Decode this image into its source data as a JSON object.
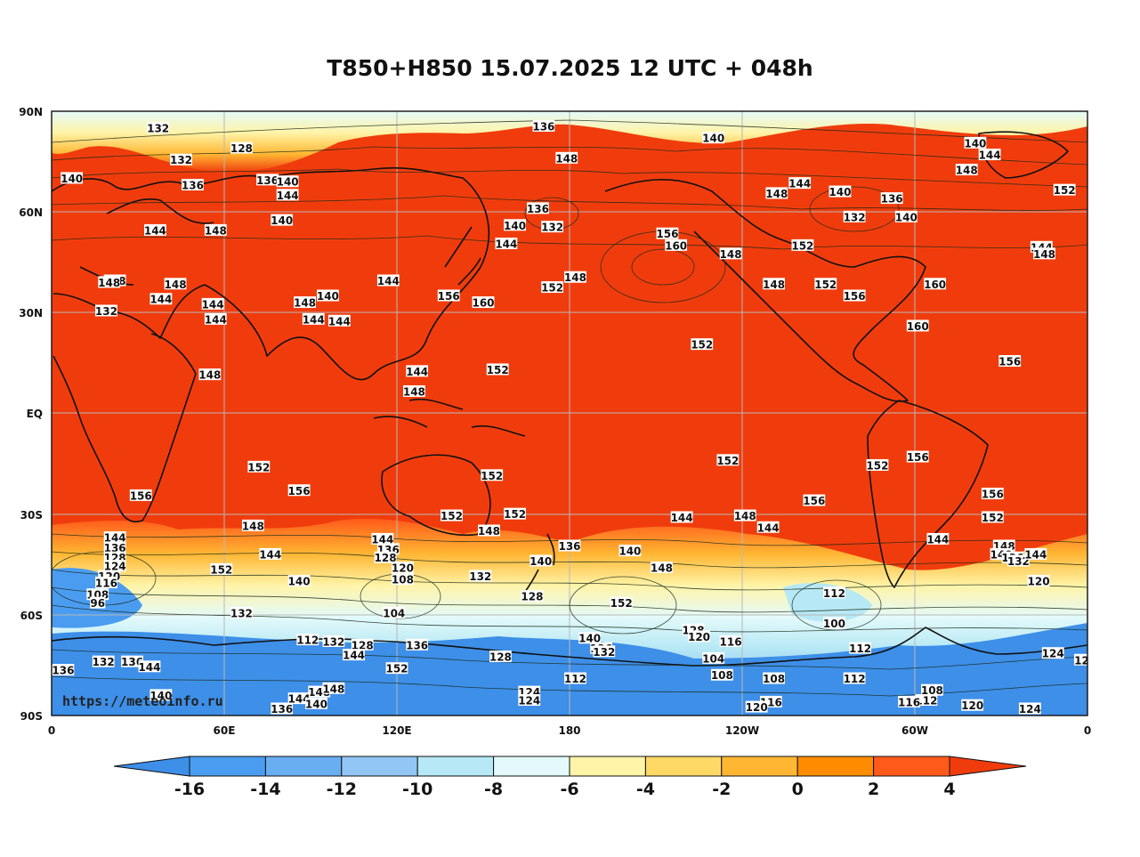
{
  "title": "T850+H850 15.07.2025 12 UTC + 048h",
  "watermark": "https://meteoinfo.ru",
  "y_axis_labels": [
    "90N",
    "60N",
    "30N",
    "EQ",
    "30S",
    "60S",
    "90S"
  ],
  "x_axis_labels": [
    "0",
    "60E",
    "120E",
    "180",
    "120W",
    "60W",
    "0"
  ],
  "colorbar": {
    "ticks": [
      "-16",
      "-14",
      "-12",
      "-10",
      "-8",
      "-6",
      "-4",
      "-2",
      "0",
      "2",
      "4"
    ],
    "colors": [
      "#3d8fe8",
      "#4a9cf0",
      "#6aaef2",
      "#92c6f5",
      "#b6e8f5",
      "#e4fafa",
      "#fff4a8",
      "#ffd966",
      "#ffb733",
      "#ff8c00",
      "#ff5a1a",
      "#f03c0c"
    ]
  },
  "colors": {
    "warm": "#f03c0c",
    "coast": "#111111",
    "grid": "#b8b8b8"
  },
  "contour_labels": [
    {
      "t": "132",
      "lon": 37,
      "lat": 85
    },
    {
      "t": "136",
      "lon": 171,
      "lat": 85.5
    },
    {
      "t": "140",
      "lon": 230,
      "lat": 82
    },
    {
      "t": "140",
      "lon": 321,
      "lat": 80.5
    },
    {
      "t": "144",
      "lon": 326,
      "lat": 77
    },
    {
      "t": "128",
      "lon": 66,
      "lat": 79
    },
    {
      "t": "132",
      "lon": 45,
      "lat": 75.5
    },
    {
      "t": "148",
      "lon": 179,
      "lat": 76
    },
    {
      "t": "148",
      "lon": 318,
      "lat": 72.5
    },
    {
      "t": "140",
      "lon": 7,
      "lat": 70
    },
    {
      "t": "136",
      "lon": 49,
      "lat": 68
    },
    {
      "t": "136",
      "lon": 75,
      "lat": 69.5
    },
    {
      "t": "140",
      "lon": 82,
      "lat": 69
    },
    {
      "t": "144",
      "lon": 82,
      "lat": 65
    },
    {
      "t": "148",
      "lon": 252,
      "lat": 65.5
    },
    {
      "t": "144",
      "lon": 260,
      "lat": 68.5
    },
    {
      "t": "140",
      "lon": 274,
      "lat": 66
    },
    {
      "t": "132",
      "lon": 279,
      "lat": 58.5
    },
    {
      "t": "140",
      "lon": 297,
      "lat": 58.5
    },
    {
      "t": "136",
      "lon": 292,
      "lat": 64
    },
    {
      "t": "152",
      "lon": 352,
      "lat": 66.5
    },
    {
      "t": "136",
      "lon": 169,
      "lat": 61
    },
    {
      "t": "132",
      "lon": 174,
      "lat": 55.5
    },
    {
      "t": "140",
      "lon": 161,
      "lat": 56
    },
    {
      "t": "144",
      "lon": 158,
      "lat": 50.5
    },
    {
      "t": "140",
      "lon": 80,
      "lat": 57.5
    },
    {
      "t": "144",
      "lon": 36,
      "lat": 54.5
    },
    {
      "t": "148",
      "lon": 57,
      "lat": 54.5
    },
    {
      "t": "156",
      "lon": 214,
      "lat": 53.5
    },
    {
      "t": "160",
      "lon": 217,
      "lat": 50
    },
    {
      "t": "148",
      "lon": 236,
      "lat": 47.5
    },
    {
      "t": "152",
      "lon": 261,
      "lat": 50
    },
    {
      "t": "144",
      "lon": 344,
      "lat": 49.5
    },
    {
      "t": "148",
      "lon": 345,
      "lat": 47.5
    },
    {
      "t": "148",
      "lon": 182,
      "lat": 40.5
    },
    {
      "t": "152",
      "lon": 174,
      "lat": 37.5
    },
    {
      "t": "148",
      "lon": 251,
      "lat": 38.5
    },
    {
      "t": "152",
      "lon": 269,
      "lat": 38.5
    },
    {
      "t": "156",
      "lon": 279,
      "lat": 35
    },
    {
      "t": "160",
      "lon": 307,
      "lat": 38.5
    },
    {
      "t": "148",
      "lon": 22,
      "lat": 39.5
    },
    {
      "t": "148",
      "lon": 43,
      "lat": 38.5
    },
    {
      "t": "144",
      "lon": 38,
      "lat": 34
    },
    {
      "t": "144",
      "lon": 117,
      "lat": 39.5
    },
    {
      "t": "156",
      "lon": 138,
      "lat": 35
    },
    {
      "t": "160",
      "lon": 150,
      "lat": 33
    },
    {
      "t": "148",
      "lon": 20,
      "lat": 39
    },
    {
      "t": "132",
      "lon": 19,
      "lat": 30.5
    },
    {
      "t": "148",
      "lon": 88,
      "lat": 33
    },
    {
      "t": "140",
      "lon": 96,
      "lat": 35
    },
    {
      "t": "144",
      "lon": 56,
      "lat": 32.5
    },
    {
      "t": "144",
      "lon": 91,
      "lat": 28
    },
    {
      "t": "144",
      "lon": 100,
      "lat": 27.5
    },
    {
      "t": "144",
      "lon": 57,
      "lat": 28
    },
    {
      "t": "152",
      "lon": 226,
      "lat": 20.5
    },
    {
      "t": "160",
      "lon": 301,
      "lat": 26
    },
    {
      "t": "156",
      "lon": 333,
      "lat": 15.5
    },
    {
      "t": "152",
      "lon": 155,
      "lat": 13
    },
    {
      "t": "144",
      "lon": 127,
      "lat": 12.5
    },
    {
      "t": "148",
      "lon": 126,
      "lat": 6.5
    },
    {
      "t": "148",
      "lon": 55,
      "lat": 11.5
    },
    {
      "t": "152",
      "lon": 72,
      "lat": -16
    },
    {
      "t": "152",
      "lon": 235,
      "lat": -14
    },
    {
      "t": "152",
      "lon": 287,
      "lat": -15.5
    },
    {
      "t": "156",
      "lon": 301,
      "lat": -13
    },
    {
      "t": "152",
      "lon": 153,
      "lat": -18.5
    },
    {
      "t": "156",
      "lon": 86,
      "lat": -23
    },
    {
      "t": "156",
      "lon": 31,
      "lat": -24.5
    },
    {
      "t": "156",
      "lon": 265,
      "lat": -26
    },
    {
      "t": "156",
      "lon": 327,
      "lat": -24
    },
    {
      "t": "152",
      "lon": 139,
      "lat": -30.5
    },
    {
      "t": "152",
      "lon": 161,
      "lat": -30
    },
    {
      "t": "152",
      "lon": 327,
      "lat": -31
    },
    {
      "t": "144",
      "lon": 219,
      "lat": -31
    },
    {
      "t": "148",
      "lon": 241,
      "lat": -30.5
    },
    {
      "t": "144",
      "lon": 249,
      "lat": -34
    },
    {
      "t": "148",
      "lon": 70,
      "lat": -33.5
    },
    {
      "t": "148",
      "lon": 152,
      "lat": -35
    },
    {
      "t": "144",
      "lon": 22,
      "lat": -37
    },
    {
      "t": "136",
      "lon": 22,
      "lat": -40
    },
    {
      "t": "128",
      "lon": 22,
      "lat": -43
    },
    {
      "t": "124",
      "lon": 22,
      "lat": -45.5
    },
    {
      "t": "120",
      "lon": 20,
      "lat": -48.5
    },
    {
      "t": "116",
      "lon": 19,
      "lat": -50.5
    },
    {
      "t": "108",
      "lon": 16,
      "lat": -54
    },
    {
      "t": "96",
      "lon": 16,
      "lat": -56.5
    },
    {
      "t": "152",
      "lon": 59,
      "lat": -46.5
    },
    {
      "t": "144",
      "lon": 76,
      "lat": -42
    },
    {
      "t": "140",
      "lon": 86,
      "lat": -50
    },
    {
      "t": "144",
      "lon": 115,
      "lat": -37.5
    },
    {
      "t": "136",
      "lon": 117,
      "lat": -40.5
    },
    {
      "t": "128",
      "lon": 116,
      "lat": -43
    },
    {
      "t": "120",
      "lon": 122,
      "lat": -46
    },
    {
      "t": "108",
      "lon": 122,
      "lat": -49.5
    },
    {
      "t": "104",
      "lon": 119,
      "lat": -59.5
    },
    {
      "t": "132",
      "lon": 149,
      "lat": -48.5
    },
    {
      "t": "128",
      "lon": 167,
      "lat": -54.5
    },
    {
      "t": "136",
      "lon": 180,
      "lat": -39.5
    },
    {
      "t": "140",
      "lon": 170,
      "lat": -44
    },
    {
      "t": "140",
      "lon": 201,
      "lat": -41
    },
    {
      "t": "148",
      "lon": 212,
      "lat": -46
    },
    {
      "t": "152",
      "lon": 198,
      "lat": -56.5
    },
    {
      "t": "132",
      "lon": 66,
      "lat": -59.5
    },
    {
      "t": "112",
      "lon": 272,
      "lat": -53.5
    },
    {
      "t": "100",
      "lon": 272,
      "lat": -62.5
    },
    {
      "t": "144",
      "lon": 308,
      "lat": -37.5
    },
    {
      "t": "148",
      "lon": 331,
      "lat": -39.5
    },
    {
      "t": "140",
      "lon": 330,
      "lat": -42
    },
    {
      "t": "136",
      "lon": 334,
      "lat": -43
    },
    {
      "t": "132",
      "lon": 336,
      "lat": -44
    },
    {
      "t": "144",
      "lon": 342,
      "lat": -42
    },
    {
      "t": "120",
      "lon": 343,
      "lat": -50
    },
    {
      "t": "112",
      "lon": 89,
      "lat": -67.5
    },
    {
      "t": "132",
      "lon": 98,
      "lat": -68
    },
    {
      "t": "128",
      "lon": 108,
      "lat": -69
    },
    {
      "t": "144",
      "lon": 105,
      "lat": -72
    },
    {
      "t": "136",
      "lon": 127,
      "lat": -69
    },
    {
      "t": "152",
      "lon": 120,
      "lat": -76
    },
    {
      "t": "136",
      "lon": 4,
      "lat": -76.5
    },
    {
      "t": "132",
      "lon": 18,
      "lat": -74
    },
    {
      "t": "136",
      "lon": 28,
      "lat": -74
    },
    {
      "t": "144",
      "lon": 34,
      "lat": -75.5
    },
    {
      "t": "128",
      "lon": 156,
      "lat": -72.5
    },
    {
      "t": "140",
      "lon": 187,
      "lat": -67
    },
    {
      "t": "136",
      "lon": 191,
      "lat": -70
    },
    {
      "t": "132",
      "lon": 192,
      "lat": -71
    },
    {
      "t": "128",
      "lon": 223,
      "lat": -64.5
    },
    {
      "t": "120",
      "lon": 225,
      "lat": -66.5
    },
    {
      "t": "116",
      "lon": 236,
      "lat": -68
    },
    {
      "t": "104",
      "lon": 230,
      "lat": -73
    },
    {
      "t": "108",
      "lon": 233,
      "lat": -78
    },
    {
      "t": "112",
      "lon": 281,
      "lat": -70
    },
    {
      "t": "112",
      "lon": 279,
      "lat": -79
    },
    {
      "t": "108",
      "lon": 251,
      "lat": -79
    },
    {
      "t": "124",
      "lon": 348,
      "lat": -71.5
    },
    {
      "t": "12",
      "lon": 358,
      "lat": -73.5
    },
    {
      "t": "112",
      "lon": 182,
      "lat": -79
    },
    {
      "t": "108",
      "lon": 306,
      "lat": -82.5
    },
    {
      "t": "112",
      "lon": 304,
      "lat": -85.5
    },
    {
      "t": "116",
      "lon": 298,
      "lat": -86
    },
    {
      "t": "120",
      "lon": 320,
      "lat": -87
    },
    {
      "t": "124",
      "lon": 340,
      "lat": -88
    },
    {
      "t": "116",
      "lon": 250,
      "lat": -86
    },
    {
      "t": "120",
      "lon": 245,
      "lat": -87.5
    },
    {
      "t": "124",
      "lon": 166,
      "lat": -83
    },
    {
      "t": "124",
      "lon": 166,
      "lat": -85.5
    },
    {
      "t": "140",
      "lon": 38,
      "lat": -84
    },
    {
      "t": "148",
      "lon": 93,
      "lat": -83
    },
    {
      "t": "148",
      "lon": 98,
      "lat": -82
    },
    {
      "t": "144",
      "lon": 86,
      "lat": -85
    },
    {
      "t": "140",
      "lon": 92,
      "lat": -86.5
    },
    {
      "t": "136",
      "lon": 80,
      "lat": -88
    }
  ]
}
